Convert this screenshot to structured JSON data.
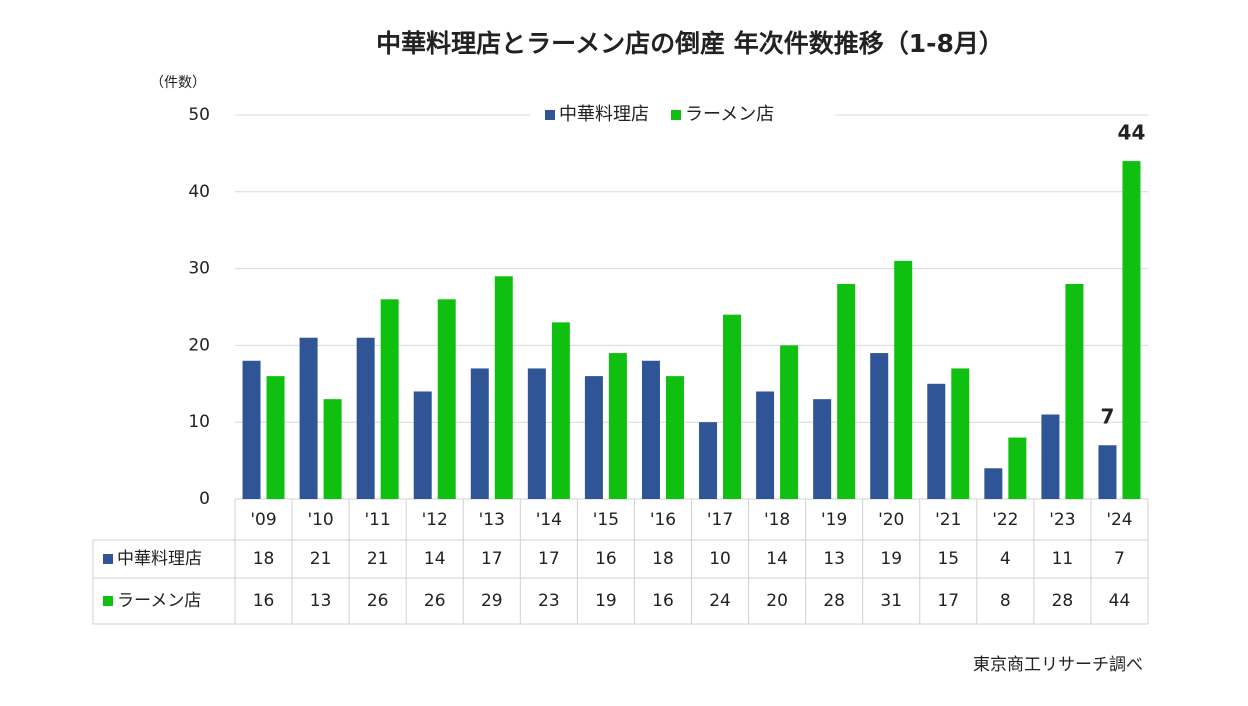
{
  "chart_data": {
    "type": "bar",
    "title": "中華料理店とラーメン店の倒産 年次件数推移（1-8月）",
    "y_label": "（件数）",
    "source": "東京商工リサーチ調べ",
    "categories": [
      "'09",
      "'10",
      "'11",
      "'12",
      "'13",
      "'14",
      "'15",
      "'16",
      "'17",
      "'18",
      "'19",
      "'20",
      "'21",
      "'22",
      "'23",
      "'24"
    ],
    "series": [
      {
        "name": "中華料理店",
        "color": "#2f5597",
        "values": [
          18,
          21,
          21,
          14,
          17,
          17,
          16,
          18,
          10,
          14,
          13,
          19,
          15,
          4,
          11,
          7
        ]
      },
      {
        "name": "ラーメン店",
        "color": "#10c010",
        "values": [
          16,
          13,
          26,
          26,
          29,
          23,
          19,
          16,
          24,
          20,
          28,
          31,
          17,
          8,
          28,
          44
        ]
      }
    ],
    "ylim": [
      0,
      50
    ],
    "yticks": [
      0,
      10,
      20,
      30,
      40,
      50
    ],
    "grid": true,
    "legend": "top"
  }
}
